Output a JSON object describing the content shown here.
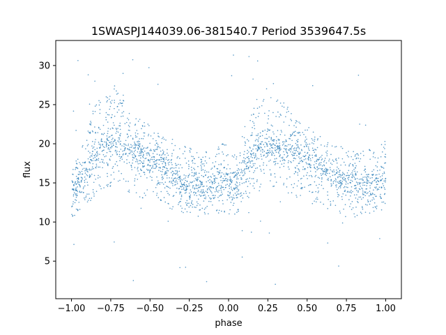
{
  "chart_data": {
    "type": "scatter",
    "title": "1SWASPJ144039.06-381540.7 Period 3539647.5s",
    "xlabel": "phase",
    "ylabel": "flux",
    "xlim": [
      -1.1,
      1.1
    ],
    "ylim": [
      0.2,
      33.2
    ],
    "xticks": [
      -1.0,
      -0.75,
      -0.5,
      -0.25,
      0.0,
      0.25,
      0.5,
      0.75,
      1.0
    ],
    "xtick_labels": [
      "−1.00",
      "−0.75",
      "−0.50",
      "−0.25",
      "0.00",
      "0.25",
      "0.50",
      "0.75",
      "1.00"
    ],
    "yticks": [
      5,
      10,
      15,
      20,
      25,
      30
    ],
    "ytick_labels": [
      "5",
      "10",
      "15",
      "20",
      "25",
      "30"
    ],
    "grid": false,
    "marker_color": "#1f77b4",
    "series": [
      {
        "profile_phase": [
          0.0,
          0.05,
          0.1,
          0.15,
          0.2,
          0.25,
          0.3,
          0.35,
          0.4,
          0.45,
          0.5,
          0.55,
          0.6,
          0.65,
          0.7,
          0.75,
          0.8,
          0.85,
          0.9,
          0.95,
          1.0
        ],
        "profile_center": [
          14.5,
          14.8,
          16.5,
          18.5,
          19.5,
          20.0,
          19.8,
          19.5,
          19.0,
          18.5,
          18.0,
          17.5,
          16.8,
          16.2,
          15.5,
          15.0,
          14.8,
          14.5,
          14.6,
          15.0,
          16.0
        ],
        "profile_upper": [
          18.0,
          19.0,
          22.0,
          25.5,
          26.0,
          27.5,
          28.0,
          25.5,
          24.0,
          23.0,
          22.5,
          21.5,
          21.0,
          20.5,
          20.0,
          19.5,
          19.0,
          19.0,
          19.5,
          20.0,
          20.5
        ],
        "profile_lower": [
          10.5,
          11.0,
          12.0,
          13.0,
          14.0,
          14.5,
          14.5,
          14.0,
          13.5,
          13.0,
          13.0,
          12.5,
          12.0,
          11.5,
          11.0,
          10.5,
          10.5,
          10.5,
          11.0,
          11.0,
          11.5
        ],
        "outlier_range": [
          2.0,
          31.5
        ]
      }
    ]
  }
}
